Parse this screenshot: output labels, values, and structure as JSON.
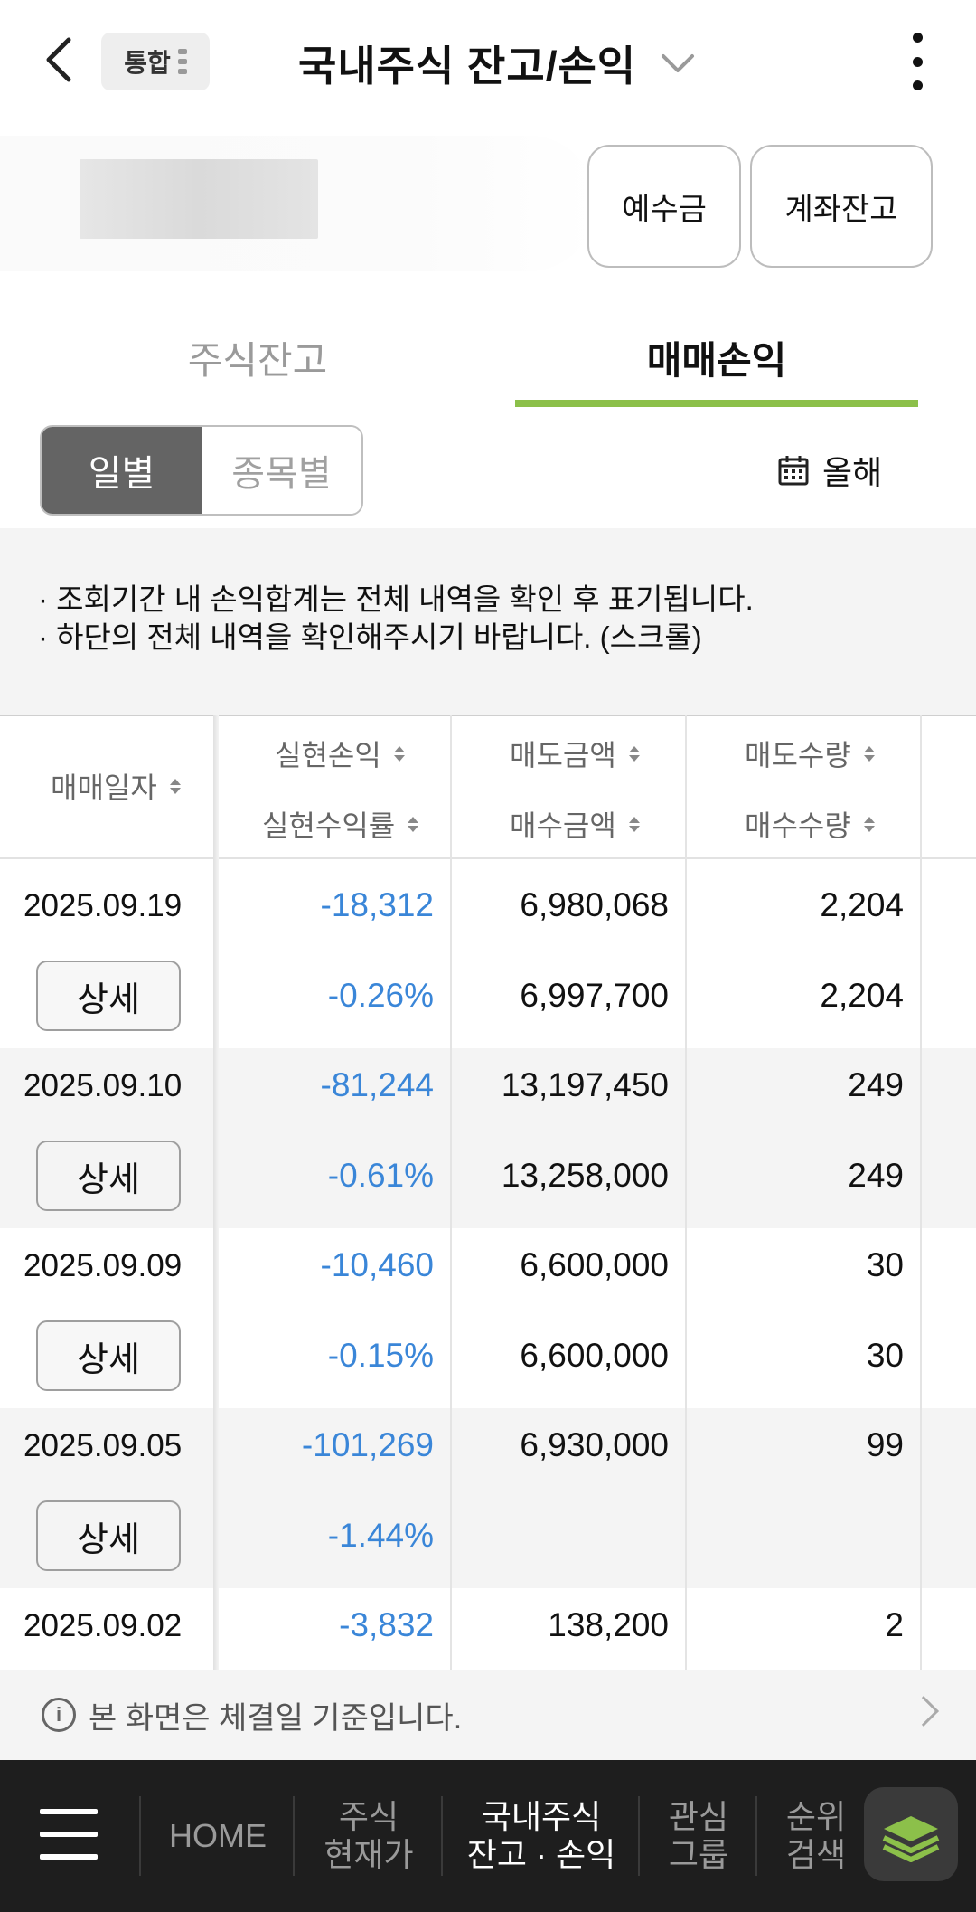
{
  "header": {
    "badge": "통합",
    "title": "국내주식 잔고/손익"
  },
  "account": {
    "deposit_button": "예수금",
    "balance_button": "계좌잔고"
  },
  "tabs": [
    {
      "label": "주식잔고",
      "active": false
    },
    {
      "label": "매매손익",
      "active": true
    }
  ],
  "segment": {
    "daily": "일별",
    "by_item": "종목별",
    "selected": "일별"
  },
  "period": {
    "label": "올해"
  },
  "notice": {
    "line1": "· 조회기간 내 손익합계는 전체 내역을 확인 후 표기됩니다.",
    "line2": "· 하단의 전체 내역을 확인해주시기 바랍니다. (스크롤)"
  },
  "table": {
    "headers": {
      "date": "매매일자",
      "realized_pnl": "실현손익",
      "realized_rate": "실현수익률",
      "sell_amount": "매도금액",
      "buy_amount": "매수금액",
      "sell_qty": "매도수량",
      "buy_qty": "매수수량"
    },
    "detail_label": "상세",
    "rows": [
      {
        "date": "2025.09.19",
        "pnl": "-18,312",
        "rate": "-0.26%",
        "sell_amount": "6,980,068",
        "buy_amount": "6,997,700",
        "sell_qty": "2,204",
        "buy_qty": "2,204"
      },
      {
        "date": "2025.09.10",
        "pnl": "-81,244",
        "rate": "-0.61%",
        "sell_amount": "13,197,450",
        "buy_amount": "13,258,000",
        "sell_qty": "249",
        "buy_qty": "249"
      },
      {
        "date": "2025.09.09",
        "pnl": "-10,460",
        "rate": "-0.15%",
        "sell_amount": "6,600,000",
        "buy_amount": "6,600,000",
        "sell_qty": "30",
        "buy_qty": "30"
      },
      {
        "date": "2025.09.05",
        "pnl": "-101,269",
        "rate": "-1.44%",
        "sell_amount": "6,930,000",
        "buy_amount": "",
        "sell_qty": "99",
        "buy_qty": ""
      },
      {
        "date": "2025.09.02",
        "pnl": "-3,832",
        "rate": "",
        "sell_amount": "138,200",
        "buy_amount": "",
        "sell_qty": "2",
        "buy_qty": ""
      }
    ]
  },
  "footer_note": "본 화면은 체결일 기준입니다.",
  "bottom_nav": {
    "home": "HOME",
    "item2": [
      "주식",
      "현재가"
    ],
    "item3": [
      "국내주식",
      "잔고 · 손익"
    ],
    "item4": [
      "관심",
      "그룹"
    ],
    "item5": [
      "순위",
      "검색"
    ]
  },
  "colors": {
    "accent_green": "#8cc04a",
    "loss_blue": "#3a86d8",
    "nav_bg": "#1e1e1e"
  }
}
